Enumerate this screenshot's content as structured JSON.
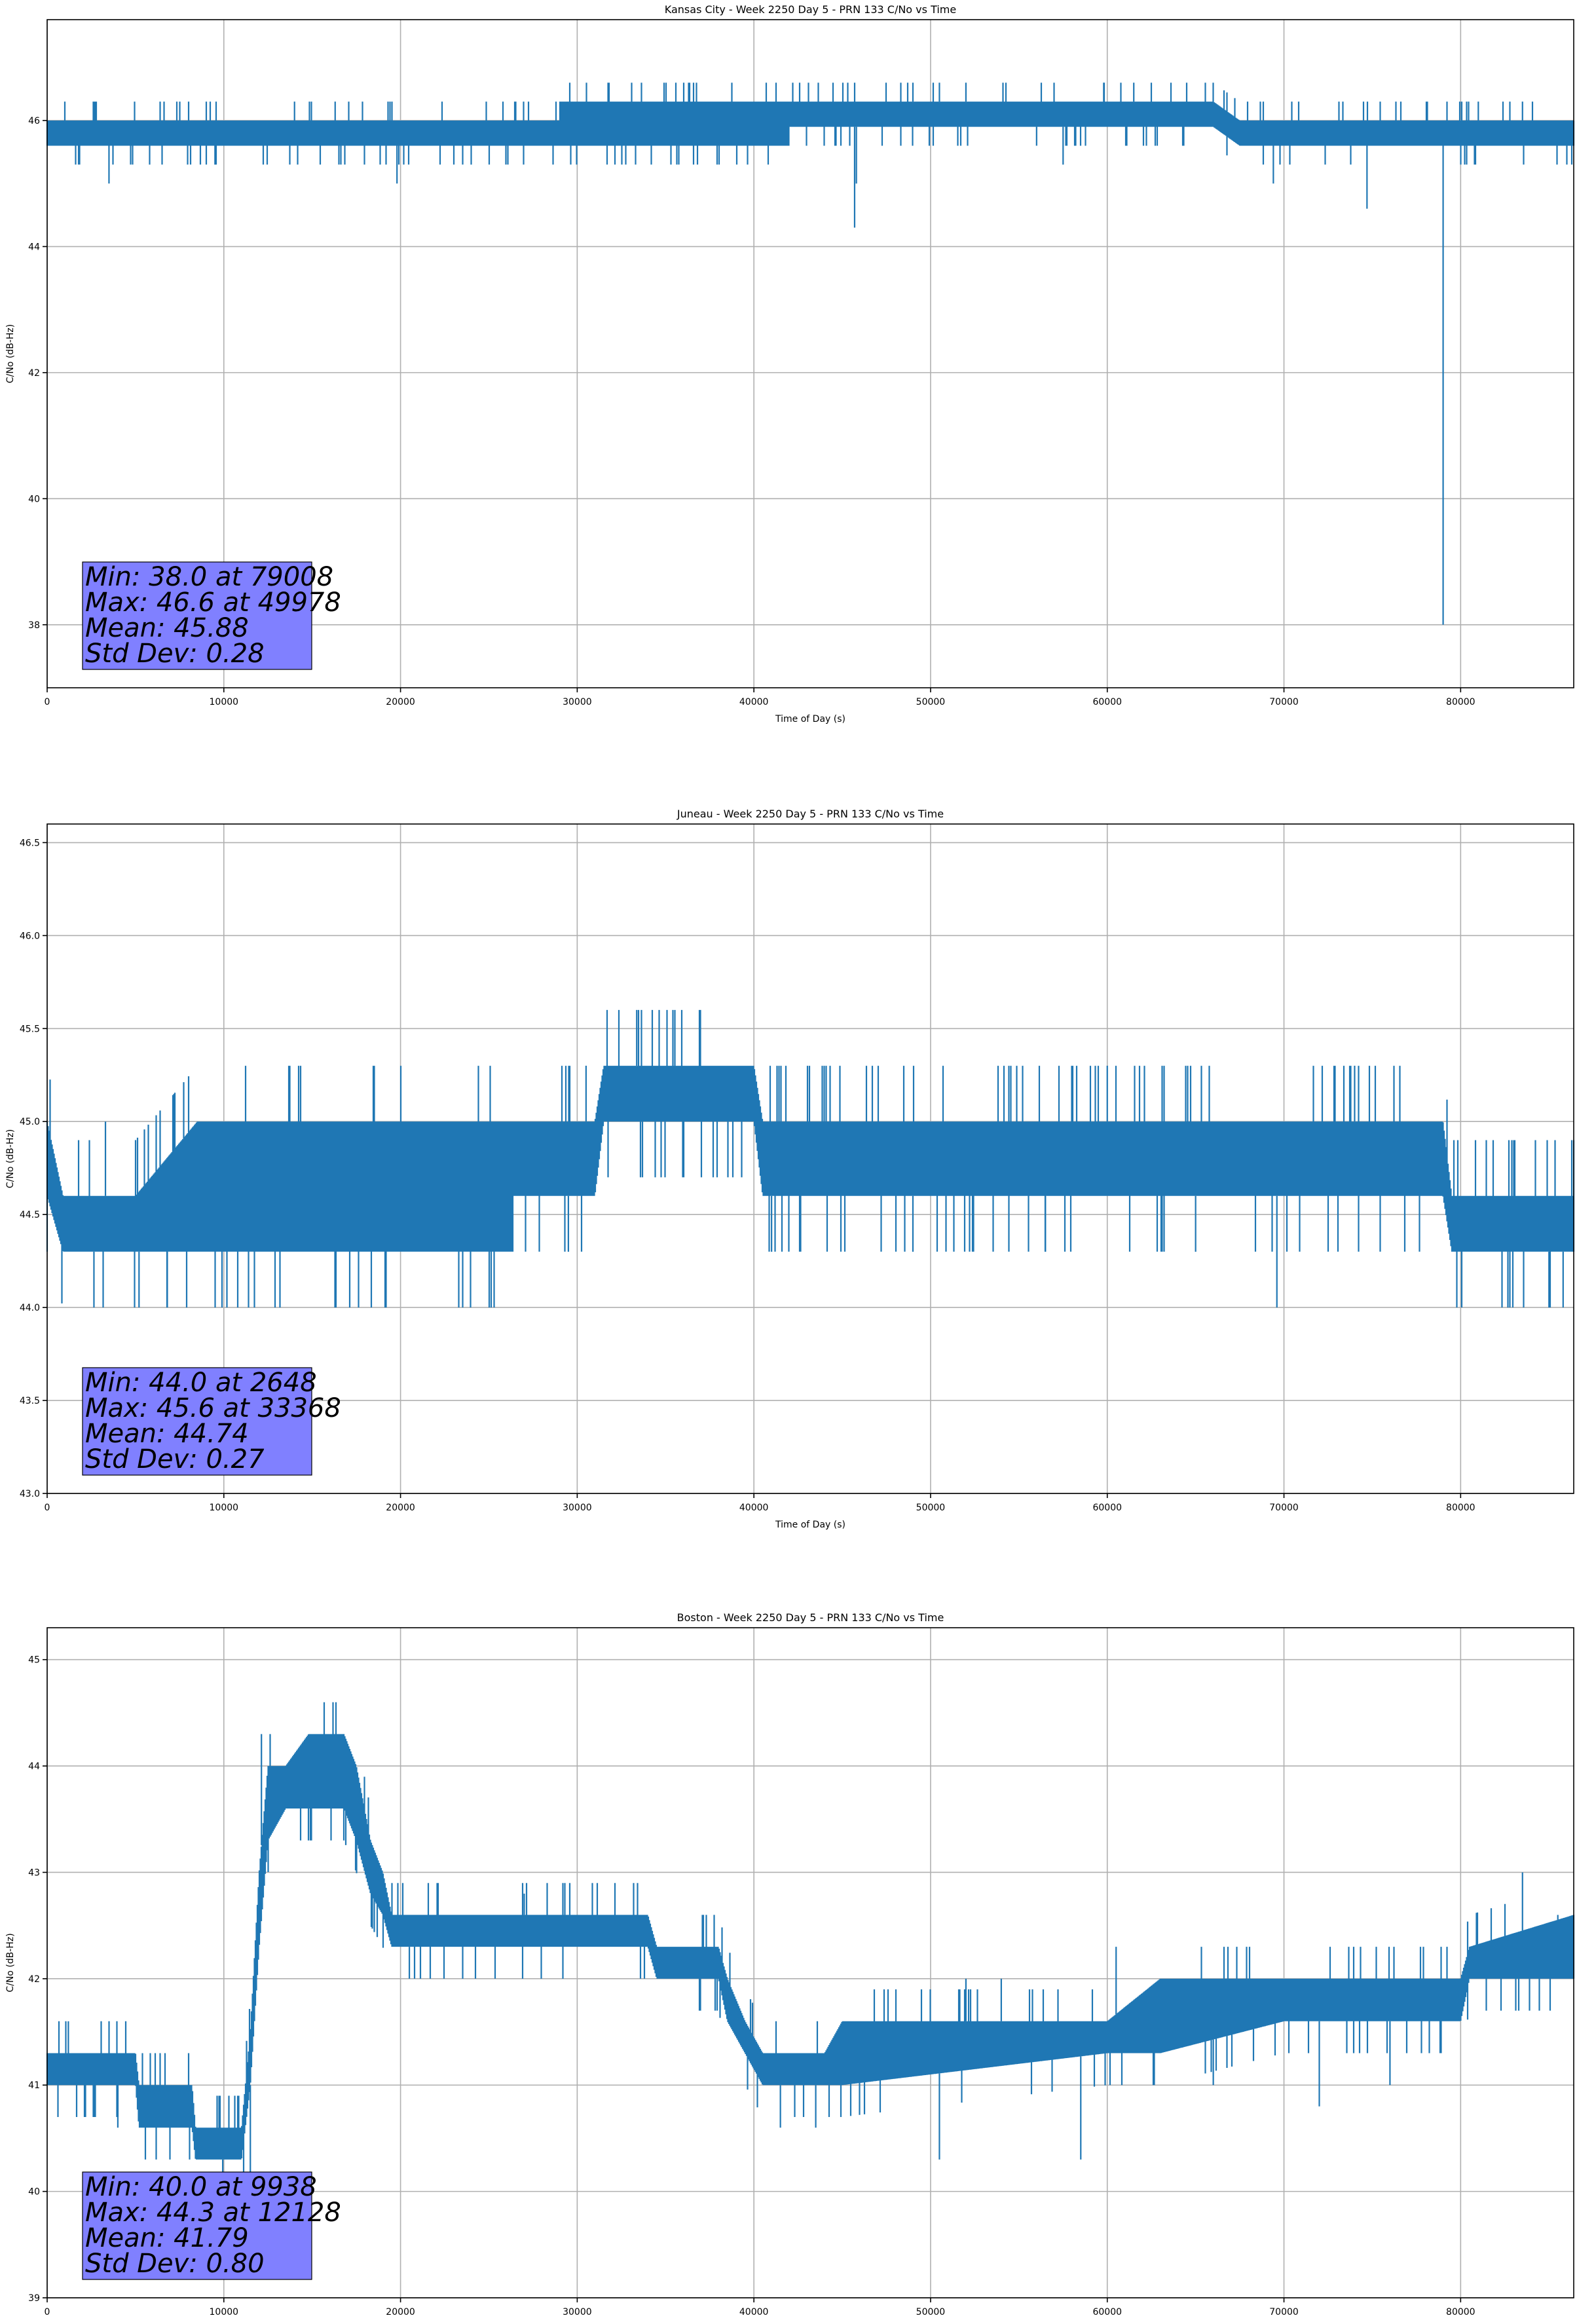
{
  "chart_data": [
    {
      "type": "line",
      "title": "Kansas City - Week 2250 Day 5 - PRN 133 C/No vs Time",
      "xlabel": "Time of Day (s)",
      "ylabel": "C/No (dB-Hz)",
      "xlim": [
        0,
        86400
      ],
      "ylim": [
        37,
        47.6
      ],
      "xticks": [
        0,
        10000,
        20000,
        30000,
        40000,
        50000,
        60000,
        70000,
        80000
      ],
      "yticks": [
        38,
        40,
        42,
        44,
        46
      ],
      "ytick_labels": [
        "38",
        "40",
        "42",
        "44",
        "46"
      ],
      "grid": true,
      "color": "#1f77b4",
      "band": [
        {
          "x": 0,
          "lo": 45.6,
          "hi": 46.0
        },
        {
          "x": 29000,
          "lo": 45.6,
          "hi": 46.0
        },
        {
          "x": 29001,
          "lo": 45.6,
          "hi": 46.3
        },
        {
          "x": 42000,
          "lo": 45.6,
          "hi": 46.3
        },
        {
          "x": 42001,
          "lo": 45.9,
          "hi": 46.3
        },
        {
          "x": 66000,
          "lo": 45.9,
          "hi": 46.3
        },
        {
          "x": 67500,
          "lo": 45.6,
          "hi": 46.0
        },
        {
          "x": 86400,
          "lo": 45.6,
          "hi": 46.0
        }
      ],
      "spikes": [
        {
          "x": 1000,
          "y": 46.3
        },
        {
          "x": 3500,
          "y": 45.0
        },
        {
          "x": 5800,
          "y": 45.3
        },
        {
          "x": 9500,
          "y": 45.3
        },
        {
          "x": 14000,
          "y": 46.3
        },
        {
          "x": 16300,
          "y": 46.3
        },
        {
          "x": 19800,
          "y": 45.0
        },
        {
          "x": 24000,
          "y": 45.3
        },
        {
          "x": 45700,
          "y": 44.3
        },
        {
          "x": 45800,
          "y": 45.0
        },
        {
          "x": 49000,
          "y": 46.6
        },
        {
          "x": 50500,
          "y": 46.6
        },
        {
          "x": 52000,
          "y": 46.6
        },
        {
          "x": 56000,
          "y": 45.6
        },
        {
          "x": 57500,
          "y": 45.3
        },
        {
          "x": 59800,
          "y": 46.6
        },
        {
          "x": 61500,
          "y": 46.6
        },
        {
          "x": 69400,
          "y": 45.0
        },
        {
          "x": 74700,
          "y": 44.6
        },
        {
          "x": 79008,
          "y": 38.0
        },
        {
          "x": 81000,
          "y": 46.3
        },
        {
          "x": 83500,
          "y": 46.3
        }
      ],
      "stats": [
        "Min: 38.0 at 79008",
        "Max: 46.6 at 49978",
        "Mean: 45.88",
        "Std Dev: 0.28"
      ]
    },
    {
      "type": "line",
      "title": "Juneau - Week 2250 Day 5 - PRN 133 C/No vs Time",
      "xlabel": "Time of Day (s)",
      "ylabel": "C/No (dB-Hz)",
      "xlim": [
        0,
        86400
      ],
      "ylim": [
        43.0,
        46.6
      ],
      "xticks": [
        0,
        10000,
        20000,
        30000,
        40000,
        50000,
        60000,
        70000,
        80000
      ],
      "yticks": [
        43.0,
        43.5,
        44.0,
        44.5,
        45.0,
        45.5,
        46.0,
        46.5
      ],
      "ytick_labels": [
        "43.0",
        "43.5",
        "44.0",
        "44.5",
        "45.0",
        "45.5",
        "46.0",
        "46.5"
      ],
      "grid": true,
      "color": "#1f77b4",
      "band": [
        {
          "x": 0,
          "lo": 44.6,
          "hi": 45.0
        },
        {
          "x": 900,
          "lo": 44.3,
          "hi": 44.6
        },
        {
          "x": 5000,
          "lo": 44.3,
          "hi": 44.6
        },
        {
          "x": 8500,
          "lo": 44.3,
          "hi": 45.0
        },
        {
          "x": 26300,
          "lo": 44.3,
          "hi": 45.0
        },
        {
          "x": 26301,
          "lo": 44.6,
          "hi": 45.0
        },
        {
          "x": 31000,
          "lo": 44.6,
          "hi": 45.0
        },
        {
          "x": 31500,
          "lo": 45.0,
          "hi": 45.3
        },
        {
          "x": 40000,
          "lo": 45.0,
          "hi": 45.3
        },
        {
          "x": 40500,
          "lo": 44.6,
          "hi": 45.0
        },
        {
          "x": 79000,
          "lo": 44.6,
          "hi": 45.0
        },
        {
          "x": 79500,
          "lo": 44.3,
          "hi": 44.6
        },
        {
          "x": 86400,
          "lo": 44.3,
          "hi": 44.6
        }
      ],
      "spikes": [
        {
          "x": 2648,
          "y": 44.0
        },
        {
          "x": 3300,
          "y": 45.0
        },
        {
          "x": 5200,
          "y": 44.0
        },
        {
          "x": 6800,
          "y": 44.0
        },
        {
          "x": 29500,
          "y": 44.3
        },
        {
          "x": 30500,
          "y": 45.3
        },
        {
          "x": 33368,
          "y": 45.6
        },
        {
          "x": 41000,
          "y": 44.3
        },
        {
          "x": 49000,
          "y": 44.3
        },
        {
          "x": 56500,
          "y": 44.3
        },
        {
          "x": 60000,
          "y": 45.3
        },
        {
          "x": 65000,
          "y": 44.3
        },
        {
          "x": 69600,
          "y": 44.0
        },
        {
          "x": 74000,
          "y": 45.3
        },
        {
          "x": 85000,
          "y": 44.0
        },
        {
          "x": 85800,
          "y": 44.0
        }
      ],
      "stats": [
        "Min: 44.0 at 2648",
        "Max: 45.6 at 33368",
        "Mean: 44.74",
        "Std Dev: 0.27"
      ]
    },
    {
      "type": "line",
      "title": "Boston - Week 2250 Day 5 - PRN 133 C/No vs Time",
      "xlabel": "Time of Day (s)",
      "ylabel": "C/No (dB-Hz)",
      "xlim": [
        0,
        86400
      ],
      "ylim": [
        39,
        45.3
      ],
      "xticks": [
        0,
        10000,
        20000,
        30000,
        40000,
        50000,
        60000,
        70000,
        80000
      ],
      "yticks": [
        39,
        40,
        41,
        42,
        43,
        44,
        45
      ],
      "ytick_labels": [
        "39",
        "40",
        "41",
        "42",
        "43",
        "44",
        "45"
      ],
      "grid": true,
      "color": "#1f77b4",
      "band": [
        {
          "x": 0,
          "lo": 41.0,
          "hi": 41.3
        },
        {
          "x": 5000,
          "lo": 41.0,
          "hi": 41.3
        },
        {
          "x": 5200,
          "lo": 40.6,
          "hi": 41.0
        },
        {
          "x": 8200,
          "lo": 40.6,
          "hi": 41.0
        },
        {
          "x": 8400,
          "lo": 40.3,
          "hi": 40.6
        },
        {
          "x": 11000,
          "lo": 40.3,
          "hi": 40.6
        },
        {
          "x": 11500,
          "lo": 41.0,
          "hi": 41.5
        },
        {
          "x": 12000,
          "lo": 42.3,
          "hi": 43.0
        },
        {
          "x": 12500,
          "lo": 43.3,
          "hi": 44.0
        },
        {
          "x": 13500,
          "lo": 43.6,
          "hi": 44.0
        },
        {
          "x": 14800,
          "lo": 43.6,
          "hi": 44.3
        },
        {
          "x": 16800,
          "lo": 43.6,
          "hi": 44.3
        },
        {
          "x": 17500,
          "lo": 43.3,
          "hi": 44.0
        },
        {
          "x": 18300,
          "lo": 42.8,
          "hi": 43.3
        },
        {
          "x": 19000,
          "lo": 42.6,
          "hi": 43.0
        },
        {
          "x": 19500,
          "lo": 42.3,
          "hi": 42.6
        },
        {
          "x": 28000,
          "lo": 42.3,
          "hi": 42.6
        },
        {
          "x": 34000,
          "lo": 42.3,
          "hi": 42.6
        },
        {
          "x": 34500,
          "lo": 42.0,
          "hi": 42.3
        },
        {
          "x": 38000,
          "lo": 42.0,
          "hi": 42.3
        },
        {
          "x": 38500,
          "lo": 41.6,
          "hi": 42.0
        },
        {
          "x": 39500,
          "lo": 41.3,
          "hi": 41.6
        },
        {
          "x": 40500,
          "lo": 41.0,
          "hi": 41.3
        },
        {
          "x": 44000,
          "lo": 41.0,
          "hi": 41.3
        },
        {
          "x": 45000,
          "lo": 41.0,
          "hi": 41.6
        },
        {
          "x": 60000,
          "lo": 41.3,
          "hi": 41.6
        },
        {
          "x": 63000,
          "lo": 41.3,
          "hi": 42.0
        },
        {
          "x": 70000,
          "lo": 41.6,
          "hi": 42.0
        },
        {
          "x": 80000,
          "lo": 41.6,
          "hi": 42.0
        },
        {
          "x": 80500,
          "lo": 42.0,
          "hi": 42.3
        },
        {
          "x": 86400,
          "lo": 42.0,
          "hi": 42.6
        }
      ],
      "spikes": [
        {
          "x": 1200,
          "y": 41.6
        },
        {
          "x": 4000,
          "y": 40.6
        },
        {
          "x": 9938,
          "y": 40.0
        },
        {
          "x": 11500,
          "y": 40.0
        },
        {
          "x": 12128,
          "y": 44.3
        },
        {
          "x": 20500,
          "y": 42.0
        },
        {
          "x": 25000,
          "y": 42.6
        },
        {
          "x": 27000,
          "y": 42.8
        },
        {
          "x": 41500,
          "y": 40.6
        },
        {
          "x": 43500,
          "y": 40.6
        },
        {
          "x": 50500,
          "y": 40.3
        },
        {
          "x": 52000,
          "y": 42.0
        },
        {
          "x": 54000,
          "y": 42.0
        },
        {
          "x": 58500,
          "y": 40.3
        },
        {
          "x": 60500,
          "y": 42.3
        },
        {
          "x": 66000,
          "y": 41.0
        },
        {
          "x": 72000,
          "y": 40.8
        },
        {
          "x": 76000,
          "y": 41.0
        },
        {
          "x": 83500,
          "y": 43.0
        },
        {
          "x": 85500,
          "y": 42.6
        }
      ],
      "stats": [
        "Min: 40.0 at 9938",
        "Max: 44.3 at 12128",
        "Mean: 41.79",
        "Std Dev: 0.80"
      ]
    }
  ]
}
